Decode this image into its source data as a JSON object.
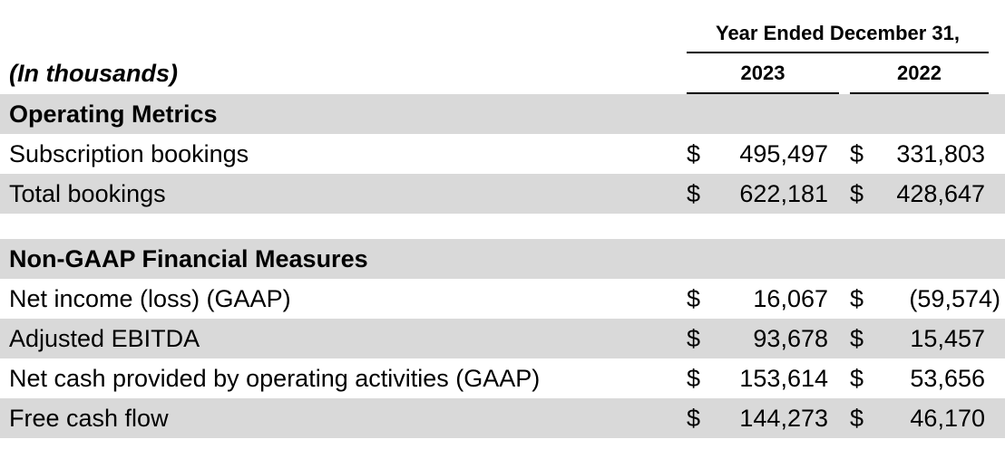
{
  "meta": {
    "units_label": "(In thousands)"
  },
  "header": {
    "period_label": "Year Ended December 31,",
    "columns": [
      "2023",
      "2022"
    ]
  },
  "sections": [
    {
      "title": "Operating Metrics",
      "rows": [
        {
          "label": "Subscription bookings",
          "currency": "$",
          "values": [
            "495,497",
            "331,803"
          ]
        },
        {
          "label": "Total bookings",
          "currency": "$",
          "values": [
            "622,181",
            "428,647"
          ]
        }
      ]
    },
    {
      "title": "Non-GAAP Financial Measures",
      "rows": [
        {
          "label": "Net income (loss) (GAAP)",
          "currency": "$",
          "values": [
            "16,067",
            "(59,574)"
          ]
        },
        {
          "label": "Adjusted EBITDA",
          "currency": "$",
          "values": [
            "93,678",
            "15,457"
          ]
        },
        {
          "label": "Net cash provided by operating activities (GAAP)",
          "currency": "$",
          "values": [
            "153,614",
            "53,656"
          ]
        },
        {
          "label": "Free cash flow",
          "currency": "$",
          "values": [
            "144,273",
            "46,170"
          ]
        }
      ]
    }
  ],
  "colors": {
    "row_shade": "#d9d9d9",
    "text": "#000000",
    "rule": "#000000",
    "background": "#ffffff"
  }
}
